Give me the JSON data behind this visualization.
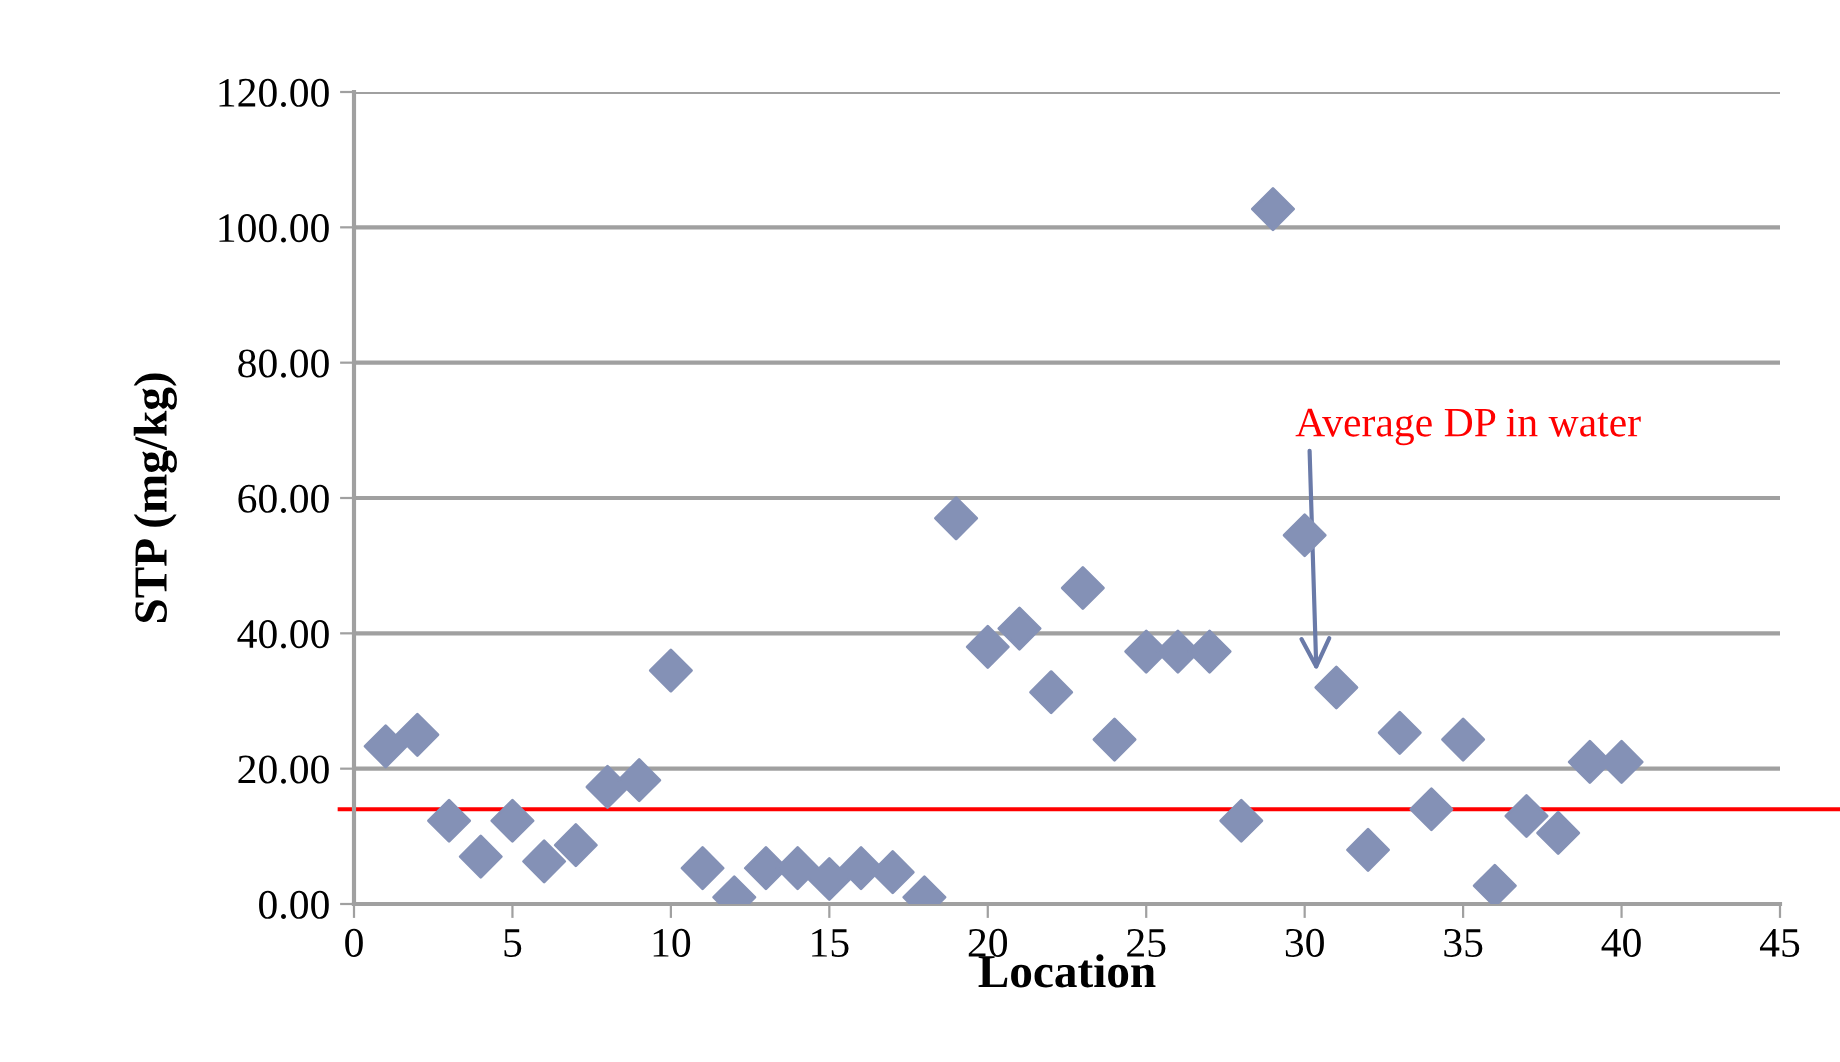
{
  "chart_data": {
    "type": "scatter",
    "xlabel": "Location",
    "ylabel": "STP (mg/kg)",
    "x": [
      1,
      2,
      3,
      4,
      5,
      6,
      7,
      8,
      9,
      10,
      11,
      12,
      13,
      14,
      15,
      16,
      17,
      18,
      19,
      20,
      21,
      22,
      23,
      24,
      25,
      26,
      27,
      28,
      29,
      30,
      31,
      32,
      33,
      34,
      35,
      36,
      37,
      38,
      39,
      40
    ],
    "series": [
      {
        "color": "#8491b6",
        "values": [
          23.3,
          25,
          12.3,
          7,
          12.3,
          6.3,
          8.7,
          17.3,
          18.3,
          34.5,
          5.3,
          1,
          5.3,
          5.3,
          3.7,
          5.3,
          4.7,
          1,
          57,
          38,
          40.7,
          31.3,
          46.7,
          24.3,
          37.3,
          37.3,
          37.3,
          12.3,
          102.7,
          54.5,
          32,
          8,
          25.3,
          14,
          24.3,
          2.7,
          13,
          10.5,
          21,
          21
        ]
      }
    ],
    "marker": "diamond",
    "grid": "y",
    "legend": false,
    "xlim": [
      0,
      45
    ],
    "xticks": [
      0,
      5,
      10,
      15,
      20,
      25,
      30,
      35,
      40,
      45
    ],
    "ylim": [
      0,
      120
    ],
    "yticks": [
      {
        "value": 0,
        "label": "0.00"
      },
      {
        "value": 20,
        "label": "20.00"
      },
      {
        "value": 40,
        "label": "40.00"
      },
      {
        "value": 60,
        "label": "60.00"
      },
      {
        "value": 80,
        "label": "80.00"
      },
      {
        "value": 100,
        "label": "100.00"
      },
      {
        "value": 120,
        "label": "120.00"
      }
    ],
    "ref_lines": [
      {
        "axis": "y",
        "value": 14,
        "color": "#ff0000"
      }
    ],
    "annotations": [
      "Average DP in water"
    ]
  }
}
